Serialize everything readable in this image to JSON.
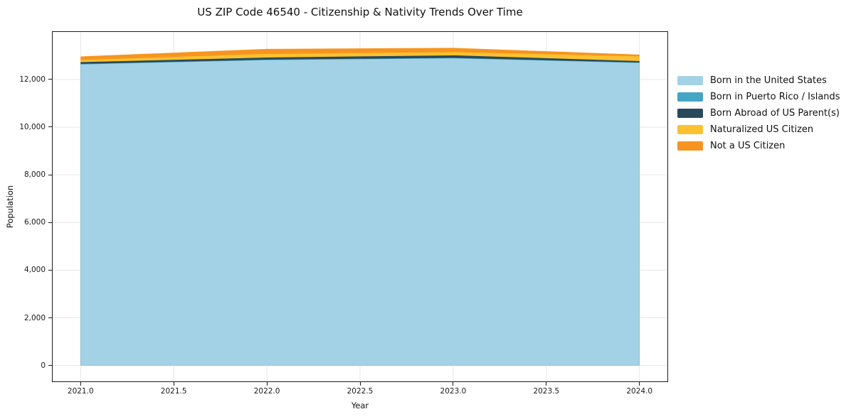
{
  "chart_data": {
    "type": "area",
    "stacked": true,
    "title": "US ZIP Code 46540 - Citizenship & Nativity Trends Over Time",
    "xlabel": "Year",
    "ylabel": "Population",
    "x": [
      2021,
      2022,
      2023,
      2024
    ],
    "series": [
      {
        "name": "Born in the United States",
        "color": "#a3d1e5",
        "values": [
          12630,
          12810,
          12885,
          12690
        ]
      },
      {
        "name": "Born in Puerto Rico / Islands",
        "color": "#44a5c4",
        "values": [
          20,
          20,
          20,
          20
        ]
      },
      {
        "name": "Born Abroad of US Parent(s)",
        "color": "#27495b",
        "values": [
          75,
          90,
          105,
          60
        ]
      },
      {
        "name": "Naturalized US Citizen",
        "color": "#fcc12f",
        "values": [
          90,
          150,
          135,
          195
        ]
      },
      {
        "name": "Not a US Citizen",
        "color": "#f7941f",
        "values": [
          150,
          210,
          180,
          75
        ]
      }
    ],
    "xticks": [
      2021.0,
      2021.5,
      2022.0,
      2022.5,
      2023.0,
      2023.5,
      2024.0
    ],
    "xtick_labels": [
      "2021.0",
      "2021.5",
      "2022.0",
      "2022.5",
      "2023.0",
      "2023.5",
      "2024.0"
    ],
    "yticks": [
      0,
      2000,
      4000,
      6000,
      8000,
      10000,
      12000
    ],
    "ytick_labels": [
      "0",
      "2,000",
      "4,000",
      "6,000",
      "8,000",
      "10,000",
      "12,000"
    ],
    "xlim": [
      2020.85,
      2024.15
    ],
    "ylim": [
      -666,
      13991
    ],
    "grid": true,
    "grid_color": "#e7e7e7",
    "background_color": "#ffffff",
    "spine_color": "#1b1b1b",
    "legend_position": "right"
  }
}
